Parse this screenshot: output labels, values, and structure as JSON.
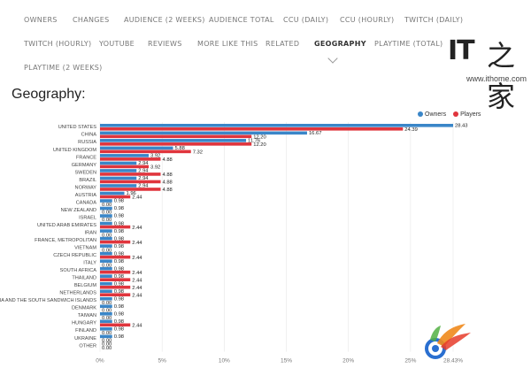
{
  "nav": {
    "tabs": [
      {
        "label": "OWNERS"
      },
      {
        "label": "CHANGES"
      },
      {
        "label": "AUDIENCE (2 WEEKS)"
      },
      {
        "label": "AUDIENCE TOTAL"
      },
      {
        "label": "CCU (DAILY)"
      },
      {
        "label": "CCU (HOURLY)"
      },
      {
        "label": "TWITCH (DAILY)"
      },
      {
        "label": "TWITCH (HOURLY)"
      },
      {
        "label": "YOUTUBE"
      },
      {
        "label": "REVIEWS"
      },
      {
        "label": "MORE LIKE THIS"
      },
      {
        "label": "RELATED"
      },
      {
        "label": "GEOGRAPHY"
      },
      {
        "label": "PLAYTIME (TOTAL)"
      },
      {
        "label": "PLAYTIME (2 WEEKS)"
      }
    ],
    "active_tab": "GEOGRAPHY"
  },
  "brand": {
    "logo_text": "IT",
    "logo_glyph": "之家",
    "url": "www.ithome.com"
  },
  "page": {
    "title": "Geography:"
  },
  "colors": {
    "owners": "#3a86c8",
    "players": "#e0353d",
    "grid": "#e6e6e6"
  },
  "chart_data": {
    "type": "bar",
    "orientation": "horizontal",
    "categories": [
      "UNITED STATES",
      "CHINA",
      "RUSSIA",
      "UNITED KINGDOM",
      "FRANCE",
      "GERMANY",
      "SWEDEN",
      "BRAZIL",
      "NORWAY",
      "AUSTRIA",
      "CANADA",
      "NEW ZEALAND",
      "ISRAEL",
      "UNITED ARAB EMIRATES",
      "IRAN",
      "FRANCE, METROPOLITAN",
      "VIETNAM",
      "CZECH REPUBLIC",
      "ITALY",
      "SOUTH AFRICA",
      "THAILAND",
      "BELGIUM",
      "NETHERLANDS",
      "SOUTH GEORGIA AND THE SOUTH SANDWICH ISLANDS",
      "DENMARK",
      "TAIWAN",
      "HUNGARY",
      "FINLAND",
      "UKRAINE",
      "OTHER"
    ],
    "series": [
      {
        "name": "Owners",
        "values": [
          28.43,
          16.67,
          11.76,
          5.88,
          3.92,
          2.94,
          2.94,
          2.94,
          2.94,
          1.96,
          0.98,
          0.98,
          0.98,
          0.98,
          0.98,
          0.98,
          0.98,
          0.98,
          0.98,
          0.98,
          0.98,
          0.98,
          0.98,
          0.98,
          0.98,
          0.98,
          0.98,
          0.98,
          0.98,
          0.0
        ]
      },
      {
        "name": "Players",
        "values": [
          24.39,
          12.2,
          12.2,
          7.32,
          4.88,
          3.92,
          4.88,
          4.88,
          4.88,
          2.44,
          0.0,
          0.0,
          0.0,
          2.44,
          0.0,
          2.44,
          0.0,
          2.44,
          0.0,
          2.44,
          2.44,
          2.44,
          2.44,
          0.0,
          0.0,
          0.0,
          2.44,
          0.0,
          0.0,
          0.0
        ]
      }
    ],
    "value_labels": {
      "owners": [
        "28.43",
        "16.67",
        "11.76",
        "5.88",
        "3.92",
        "2.94",
        "2.94",
        "2.94",
        "2.94",
        "1.96",
        "0.98",
        "0.98",
        "0.98",
        "0.98",
        "0.98",
        "0.98",
        "0.98",
        "0.98",
        "0.98",
        "0.98",
        "0.98",
        "0.98",
        "0.98",
        "0.98",
        "0.98",
        "0.98",
        "0.98",
        "0.98",
        "0.98",
        "0.00"
      ],
      "players": [
        "24.39",
        "12.20",
        "12.20",
        "7.32",
        "4.88",
        "3.92",
        "4.88",
        "4.88",
        "4.88",
        "2.44",
        "0.00",
        "0.00",
        "0.00",
        "2.44",
        "0.00",
        "2.44",
        "0.00",
        "2.44",
        "0.00",
        "2.44",
        "2.44",
        "2.44",
        "2.44",
        "0.00",
        "0.00",
        "0.00",
        "2.44",
        "0.00",
        "0.00",
        "0.00"
      ]
    },
    "xticks": [
      "0%",
      "5%",
      "10%",
      "15%",
      "20%",
      "25%",
      "28.43%"
    ],
    "xlim": [
      0,
      28.43
    ],
    "xlabel": "",
    "ylabel": "",
    "legend": [
      "Owners",
      "Players"
    ],
    "legend_position": "top-right",
    "grid": true
  }
}
